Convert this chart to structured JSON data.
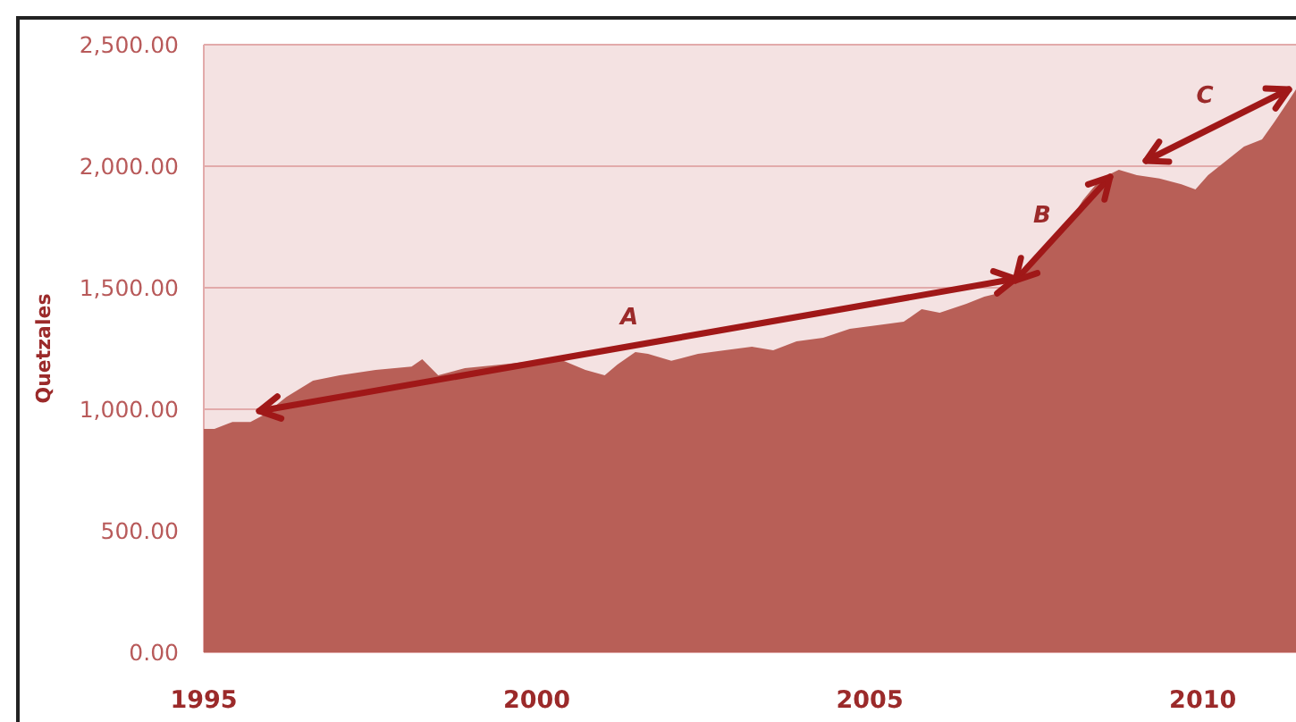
{
  "chart_data": {
    "type": "area",
    "ylabel": "Quetzales",
    "x": [
      1995,
      1995.16,
      1995.43,
      1995.7,
      1995.91,
      1996.24,
      1996.64,
      1997.04,
      1997.58,
      1998.12,
      1998.28,
      1998.52,
      1998.92,
      1999.46,
      2000,
      2000.4,
      2000.73,
      2001.02,
      2001.21,
      2001.48,
      2001.67,
      2002.02,
      2002.42,
      2002.82,
      2003.23,
      2003.55,
      2003.9,
      2004.3,
      2004.7,
      2005.11,
      2005.51,
      2005.78,
      2006.05,
      2006.45,
      2006.72,
      2006.94,
      2007.12,
      2007.39,
      2007.66,
      2007.93,
      2008.2,
      2008.47,
      2008.74,
      2009.01,
      2009.35,
      2009.68,
      2009.89,
      2010.08,
      2010.35,
      2010.62,
      2010.89,
      2011.08,
      2011.26,
      2011.4
    ],
    "series": [
      {
        "color": "#b85f57",
        "values": [
          919,
          919,
          948,
          948,
          978,
          1051,
          1118,
          1140,
          1162,
          1176,
          1206,
          1140,
          1169,
          1184,
          1199,
          1199,
          1162,
          1140,
          1184,
          1235,
          1228,
          1199,
          1228,
          1243,
          1257,
          1243,
          1279,
          1294,
          1331,
          1346,
          1360,
          1412,
          1397,
          1434,
          1463,
          1478,
          1522,
          1581,
          1669,
          1743,
          1860,
          1949,
          1985,
          1963,
          1949,
          1926,
          1904,
          1963,
          2022,
          2081,
          2110,
          2184,
          2257,
          2316
        ]
      }
    ],
    "xlim": [
      1995,
      2011.4
    ],
    "xticks": [
      1995,
      2000,
      2005,
      2010
    ],
    "ylim": [
      0,
      2500
    ],
    "yticks": [
      {
        "value": 0,
        "label": "0.00"
      },
      {
        "value": 500,
        "label": "500.00"
      },
      {
        "value": 1000,
        "label": "1,000.00"
      },
      {
        "value": 1500,
        "label": "1,500.00"
      },
      {
        "value": 2000,
        "label": "2,000.00"
      },
      {
        "value": 2500,
        "label": "2,500.00"
      }
    ],
    "grid": "y",
    "annotations": [
      "A",
      "B",
      "C"
    ]
  }
}
